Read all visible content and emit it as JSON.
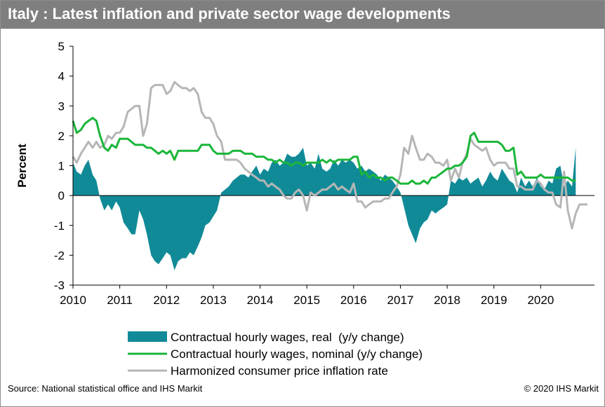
{
  "header": {
    "title": "Italy : Latest inflation and private sector wage developments"
  },
  "footer": {
    "source": "Source: National statistical office and IHS Markit",
    "copyright": "© 2020 IHS Markit"
  },
  "colors": {
    "real": "#118a97",
    "nominal": "#1bb63a",
    "cpi": "#b6b6b6",
    "title_bar": "#7f7f7f"
  },
  "chart_data": {
    "type": "area",
    "ylabel": "Percent",
    "ylim": [
      -3,
      5
    ],
    "yticks": [
      -3,
      -2,
      -1,
      0,
      1,
      2,
      3,
      4,
      5
    ],
    "xlim": [
      2010,
      2021.15
    ],
    "xticks": [
      "2010",
      "2011",
      "2012",
      "2013",
      "2014",
      "2015",
      "2016",
      "2017",
      "2018",
      "2019",
      "2020"
    ],
    "legend_position": "bottom",
    "grid": false,
    "series": [
      {
        "name": "Contractual hourly wages, real  (y/y change)",
        "style": "area",
        "x": [
          2010.0,
          2010.08,
          2010.17,
          2010.25,
          2010.33,
          2010.42,
          2010.5,
          2010.58,
          2010.67,
          2010.75,
          2010.83,
          2010.92,
          2011.0,
          2011.08,
          2011.17,
          2011.25,
          2011.33,
          2011.42,
          2011.5,
          2011.58,
          2011.67,
          2011.75,
          2011.83,
          2011.92,
          2012.0,
          2012.08,
          2012.17,
          2012.25,
          2012.33,
          2012.42,
          2012.5,
          2012.58,
          2012.67,
          2012.75,
          2012.83,
          2012.92,
          2013.0,
          2013.08,
          2013.17,
          2013.25,
          2013.33,
          2013.42,
          2013.5,
          2013.58,
          2013.67,
          2013.75,
          2013.83,
          2013.92,
          2014.0,
          2014.08,
          2014.17,
          2014.25,
          2014.33,
          2014.42,
          2014.5,
          2014.58,
          2014.67,
          2014.75,
          2014.83,
          2014.92,
          2015.0,
          2015.08,
          2015.17,
          2015.25,
          2015.33,
          2015.42,
          2015.5,
          2015.58,
          2015.67,
          2015.75,
          2015.83,
          2015.92,
          2016.0,
          2016.08,
          2016.17,
          2016.25,
          2016.33,
          2016.42,
          2016.5,
          2016.58,
          2016.67,
          2016.75,
          2016.83,
          2016.92,
          2017.0,
          2017.08,
          2017.17,
          2017.25,
          2017.33,
          2017.42,
          2017.5,
          2017.58,
          2017.67,
          2017.75,
          2017.83,
          2017.92,
          2018.0,
          2018.08,
          2018.17,
          2018.25,
          2018.33,
          2018.42,
          2018.5,
          2018.58,
          2018.67,
          2018.75,
          2018.83,
          2018.92,
          2019.0,
          2019.08,
          2019.17,
          2019.25,
          2019.33,
          2019.42,
          2019.5,
          2019.58,
          2019.67,
          2019.75,
          2019.83,
          2019.92,
          2020.0,
          2020.08,
          2020.17,
          2020.25,
          2020.33,
          2020.42,
          2020.5,
          2020.58,
          2020.67,
          2020.75
        ],
        "values": [
          1.1,
          0.8,
          0.7,
          1.0,
          1.2,
          0.7,
          0.5,
          -0.1,
          -0.5,
          -0.3,
          -0.5,
          -0.2,
          -0.4,
          -0.9,
          -1.1,
          -1.3,
          -1.3,
          -0.5,
          -0.8,
          -1.3,
          -2.0,
          -2.2,
          -2.3,
          -2.1,
          -1.9,
          -2.0,
          -2.5,
          -2.2,
          -2.1,
          -2.1,
          -1.9,
          -2.0,
          -1.7,
          -1.4,
          -1.0,
          -0.9,
          -0.7,
          -0.5,
          0.1,
          0.2,
          0.3,
          0.5,
          0.6,
          0.7,
          0.7,
          0.6,
          0.8,
          1.0,
          0.7,
          0.9,
          0.8,
          1.1,
          1.2,
          1.0,
          1.1,
          1.4,
          1.3,
          1.3,
          1.4,
          1.6,
          1.0,
          1.1,
          0.9,
          1.4,
          0.9,
          0.8,
          0.9,
          1.2,
          1.0,
          1.2,
          1.1,
          1.2,
          1.1,
          0.9,
          1.0,
          0.8,
          0.9,
          0.8,
          0.7,
          0.5,
          0.7,
          0.6,
          0.5,
          0.3,
          0.1,
          -0.4,
          -1.0,
          -1.3,
          -1.6,
          -1.1,
          -0.9,
          -0.8,
          -0.5,
          -0.6,
          -0.5,
          -0.4,
          -0.3,
          0.5,
          0.4,
          0.6,
          0.5,
          0.6,
          0.4,
          0.5,
          0.6,
          0.3,
          0.5,
          0.8,
          0.6,
          0.5,
          0.9,
          0.7,
          0.5,
          0.4,
          0.1,
          0.6,
          0.3,
          0.5,
          0.3,
          0.6,
          0.3,
          0.2,
          0.5,
          0.4,
          0.9,
          1.0,
          0.3,
          0.5,
          0.3,
          1.6
        ]
      },
      {
        "name": "Contractual hourly wages, nominal (y/y change)",
        "style": "line",
        "x": [
          2010.0,
          2010.08,
          2010.17,
          2010.25,
          2010.33,
          2010.42,
          2010.5,
          2010.58,
          2010.67,
          2010.75,
          2010.83,
          2010.92,
          2011.0,
          2011.08,
          2011.17,
          2011.25,
          2011.33,
          2011.42,
          2011.5,
          2011.58,
          2011.67,
          2011.75,
          2011.83,
          2011.92,
          2012.0,
          2012.08,
          2012.17,
          2012.25,
          2012.33,
          2012.42,
          2012.5,
          2012.58,
          2012.67,
          2012.75,
          2012.83,
          2012.92,
          2013.0,
          2013.08,
          2013.17,
          2013.25,
          2013.33,
          2013.42,
          2013.5,
          2013.58,
          2013.67,
          2013.75,
          2013.83,
          2013.92,
          2014.0,
          2014.08,
          2014.17,
          2014.25,
          2014.33,
          2014.42,
          2014.5,
          2014.58,
          2014.67,
          2014.75,
          2014.83,
          2014.92,
          2015.0,
          2015.08,
          2015.17,
          2015.25,
          2015.33,
          2015.42,
          2015.5,
          2015.58,
          2015.67,
          2015.75,
          2015.83,
          2015.92,
          2016.0,
          2016.08,
          2016.17,
          2016.25,
          2016.33,
          2016.42,
          2016.5,
          2016.58,
          2016.67,
          2016.75,
          2016.83,
          2016.92,
          2017.0,
          2017.08,
          2017.17,
          2017.25,
          2017.33,
          2017.42,
          2017.5,
          2017.58,
          2017.67,
          2017.75,
          2017.83,
          2017.92,
          2018.0,
          2018.08,
          2018.17,
          2018.25,
          2018.33,
          2018.42,
          2018.5,
          2018.58,
          2018.67,
          2018.75,
          2018.83,
          2018.92,
          2019.0,
          2019.08,
          2019.17,
          2019.25,
          2019.33,
          2019.42,
          2019.5,
          2019.58,
          2019.67,
          2019.75,
          2019.83,
          2019.92,
          2020.0,
          2020.08,
          2020.17,
          2020.25,
          2020.33,
          2020.42,
          2020.5,
          2020.58,
          2020.67,
          2020.75
        ],
        "values": [
          2.5,
          2.1,
          2.2,
          2.4,
          2.5,
          2.6,
          2.5,
          2.0,
          1.6,
          1.5,
          1.7,
          1.6,
          1.9,
          1.9,
          1.9,
          1.8,
          1.7,
          1.7,
          1.7,
          1.6,
          1.6,
          1.5,
          1.4,
          1.5,
          1.4,
          1.5,
          1.2,
          1.5,
          1.5,
          1.5,
          1.5,
          1.5,
          1.5,
          1.7,
          1.7,
          1.7,
          1.5,
          1.4,
          1.4,
          1.4,
          1.4,
          1.5,
          1.5,
          1.5,
          1.4,
          1.4,
          1.4,
          1.3,
          1.3,
          1.3,
          1.2,
          1.2,
          1.1,
          1.2,
          1.1,
          1.1,
          1.0,
          1.1,
          1.1,
          1.0,
          1.1,
          1.1,
          1.1,
          1.1,
          1.2,
          1.1,
          1.2,
          1.1,
          1.2,
          1.2,
          1.2,
          1.2,
          1.3,
          1.3,
          0.7,
          0.8,
          0.6,
          0.7,
          0.6,
          0.6,
          0.5,
          0.6,
          0.6,
          0.5,
          0.4,
          0.4,
          0.4,
          0.5,
          0.4,
          0.4,
          0.5,
          0.4,
          0.6,
          0.6,
          0.7,
          0.8,
          0.9,
          0.9,
          1.0,
          1.0,
          1.1,
          1.3,
          2.0,
          2.1,
          1.8,
          1.8,
          1.8,
          1.8,
          1.8,
          1.8,
          1.7,
          1.5,
          1.5,
          1.6,
          0.7,
          0.8,
          0.6,
          0.6,
          0.6,
          0.6,
          0.7,
          0.6,
          0.6,
          0.6,
          0.6,
          0.6,
          0.6,
          0.6,
          0.5,
          0.5
        ]
      },
      {
        "name": "Harmonized consumer price inflation rate",
        "style": "line",
        "x": [
          2010.0,
          2010.08,
          2010.17,
          2010.25,
          2010.33,
          2010.42,
          2010.5,
          2010.58,
          2010.67,
          2010.75,
          2010.83,
          2010.92,
          2011.0,
          2011.08,
          2011.17,
          2011.25,
          2011.33,
          2011.42,
          2011.5,
          2011.58,
          2011.67,
          2011.75,
          2011.83,
          2011.92,
          2012.0,
          2012.08,
          2012.17,
          2012.25,
          2012.33,
          2012.42,
          2012.5,
          2012.58,
          2012.67,
          2012.75,
          2012.83,
          2012.92,
          2013.0,
          2013.08,
          2013.17,
          2013.25,
          2013.33,
          2013.42,
          2013.5,
          2013.58,
          2013.67,
          2013.75,
          2013.83,
          2013.92,
          2014.0,
          2014.08,
          2014.17,
          2014.25,
          2014.33,
          2014.42,
          2014.5,
          2014.58,
          2014.67,
          2014.75,
          2014.83,
          2014.92,
          2015.0,
          2015.08,
          2015.17,
          2015.25,
          2015.33,
          2015.42,
          2015.5,
          2015.58,
          2015.67,
          2015.75,
          2015.83,
          2015.92,
          2016.0,
          2016.08,
          2016.17,
          2016.25,
          2016.33,
          2016.42,
          2016.5,
          2016.58,
          2016.67,
          2016.75,
          2016.83,
          2016.92,
          2017.0,
          2017.08,
          2017.17,
          2017.25,
          2017.33,
          2017.42,
          2017.5,
          2017.58,
          2017.67,
          2017.75,
          2017.83,
          2017.92,
          2018.0,
          2018.08,
          2018.17,
          2018.25,
          2018.33,
          2018.42,
          2018.5,
          2018.58,
          2018.67,
          2018.75,
          2018.83,
          2018.92,
          2019.0,
          2019.08,
          2019.17,
          2019.25,
          2019.33,
          2019.42,
          2019.5,
          2019.58,
          2019.67,
          2019.75,
          2019.83,
          2019.92,
          2020.0,
          2020.08,
          2020.17,
          2020.25,
          2020.33,
          2020.42,
          2020.5,
          2020.58,
          2020.67,
          2020.75,
          2020.83,
          2020.92,
          2021.0
        ],
        "values": [
          1.3,
          1.1,
          1.4,
          1.6,
          1.8,
          1.6,
          1.8,
          1.6,
          1.7,
          2.0,
          1.9,
          2.1,
          2.1,
          2.3,
          2.8,
          2.9,
          3.0,
          3.0,
          2.0,
          2.4,
          3.6,
          3.7,
          3.7,
          3.7,
          3.4,
          3.5,
          3.8,
          3.7,
          3.6,
          3.6,
          3.5,
          3.6,
          3.4,
          2.8,
          2.6,
          2.6,
          2.4,
          2.0,
          1.8,
          1.2,
          1.2,
          1.2,
          1.2,
          1.1,
          0.9,
          0.8,
          0.7,
          0.6,
          0.5,
          0.5,
          0.3,
          0.4,
          0.3,
          0.2,
          0.0,
          -0.1,
          -0.1,
          0.1,
          0.2,
          0.0,
          -0.5,
          0.1,
          0.0,
          0.1,
          0.2,
          0.2,
          0.3,
          0.4,
          0.2,
          0.3,
          0.2,
          0.1,
          0.4,
          -0.2,
          -0.2,
          -0.4,
          -0.3,
          -0.2,
          -0.2,
          -0.2,
          -0.1,
          -0.1,
          0.1,
          0.3,
          0.7,
          1.6,
          1.4,
          2.0,
          1.6,
          1.2,
          1.2,
          1.4,
          1.3,
          1.1,
          1.1,
          1.0,
          1.2,
          0.5,
          0.9,
          0.6,
          1.1,
          1.4,
          1.9,
          1.7,
          1.6,
          1.5,
          1.6,
          1.2,
          1.0,
          1.1,
          1.1,
          1.1,
          0.9,
          0.9,
          0.3,
          0.3,
          0.2,
          0.2,
          0.2,
          0.5,
          0.4,
          0.2,
          0.1,
          0.1,
          -0.3,
          -0.4,
          0.8,
          -0.5,
          -1.1,
          -0.6,
          -0.3,
          -0.3,
          -0.3
        ]
      }
    ]
  }
}
